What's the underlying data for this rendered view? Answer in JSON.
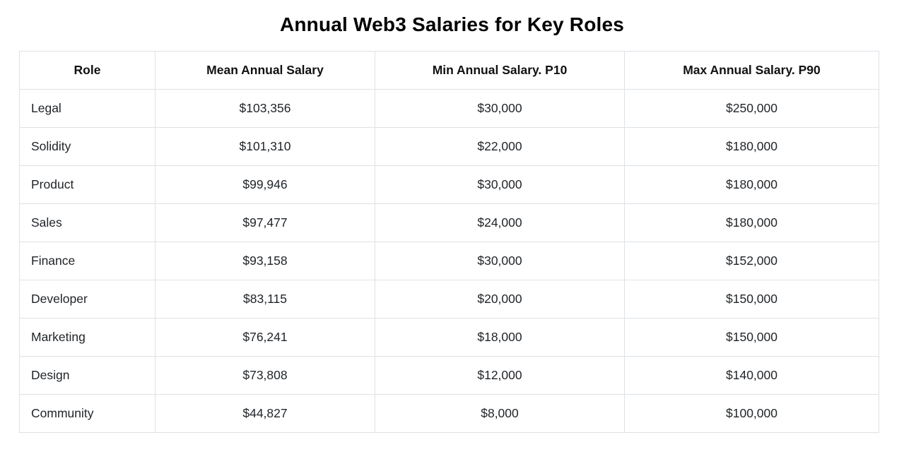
{
  "page": {
    "title": "Annual Web3 Salaries for Key Roles"
  },
  "table": {
    "columns": [
      "Role",
      "Mean Annual Salary",
      "Min Annual Salary. P10",
      "Max Annual Salary. P90"
    ],
    "rows": [
      [
        "Legal",
        "$103,356",
        "$30,000",
        "$250,000"
      ],
      [
        "Solidity",
        "$101,310",
        "$22,000",
        "$180,000"
      ],
      [
        "Product",
        "$99,946",
        "$30,000",
        "$180,000"
      ],
      [
        "Sales",
        "$97,477",
        "$24,000",
        "$180,000"
      ],
      [
        "Finance",
        "$93,158",
        "$30,000",
        "$152,000"
      ],
      [
        "Developer",
        "$83,115",
        "$20,000",
        "$150,000"
      ],
      [
        "Marketing",
        "$76,241",
        "$18,000",
        "$150,000"
      ],
      [
        "Design",
        "$73,808",
        "$12,000",
        "$140,000"
      ],
      [
        "Community",
        "$44,827",
        "$8,000",
        "$100,000"
      ]
    ]
  },
  "chart_data": {
    "type": "table",
    "title": "Annual Web3 Salaries for Key Roles",
    "columns": [
      "Role",
      "Mean Annual Salary",
      "Min Annual Salary. P10",
      "Max Annual Salary. P90"
    ],
    "rows": [
      {
        "role": "Legal",
        "mean_annual_salary": 103356,
        "min_annual_salary_p10": 30000,
        "max_annual_salary_p90": 250000
      },
      {
        "role": "Solidity",
        "mean_annual_salary": 101310,
        "min_annual_salary_p10": 22000,
        "max_annual_salary_p90": 180000
      },
      {
        "role": "Product",
        "mean_annual_salary": 99946,
        "min_annual_salary_p10": 30000,
        "max_annual_salary_p90": 180000
      },
      {
        "role": "Sales",
        "mean_annual_salary": 97477,
        "min_annual_salary_p10": 24000,
        "max_annual_salary_p90": 180000
      },
      {
        "role": "Finance",
        "mean_annual_salary": 93158,
        "min_annual_salary_p10": 30000,
        "max_annual_salary_p90": 152000
      },
      {
        "role": "Developer",
        "mean_annual_salary": 83115,
        "min_annual_salary_p10": 20000,
        "max_annual_salary_p90": 150000
      },
      {
        "role": "Marketing",
        "mean_annual_salary": 76241,
        "min_annual_salary_p10": 18000,
        "max_annual_salary_p90": 150000
      },
      {
        "role": "Design",
        "mean_annual_salary": 73808,
        "min_annual_salary_p10": 12000,
        "max_annual_salary_p90": 140000
      },
      {
        "role": "Community",
        "mean_annual_salary": 44827,
        "min_annual_salary_p10": 8000,
        "max_annual_salary_p90": 100000
      }
    ]
  },
  "colors": {
    "background": "#ffffff",
    "border": "#dee2e6",
    "title_text": "#000000",
    "cell_text": "#212529"
  }
}
